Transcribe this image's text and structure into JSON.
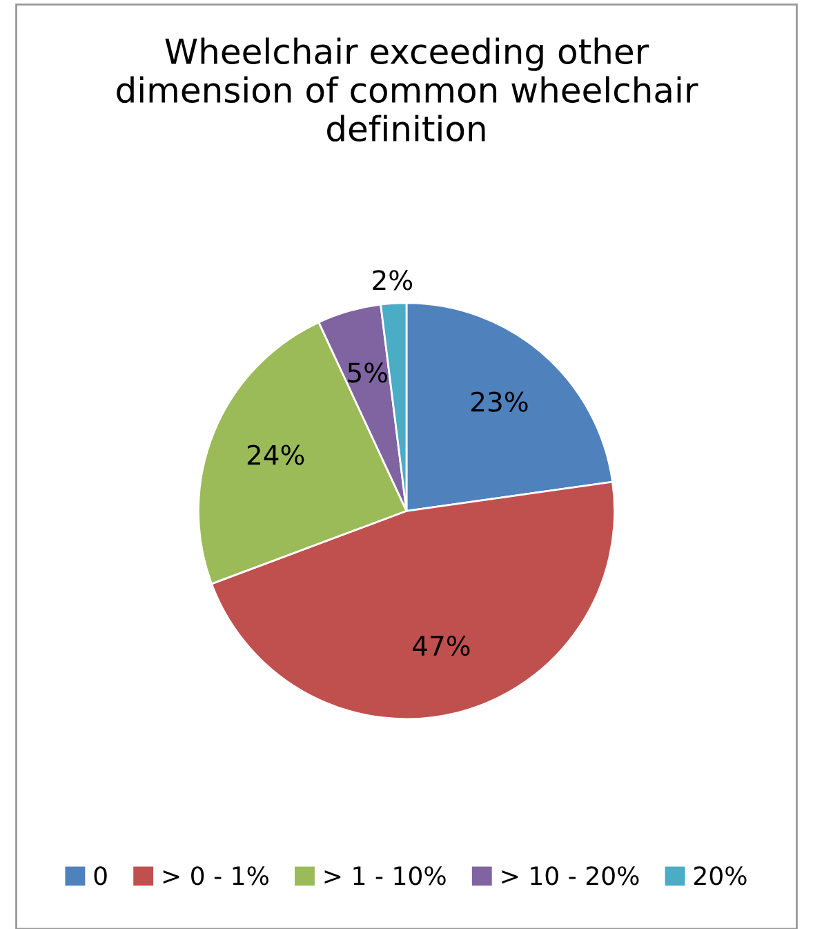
{
  "chart_data": {
    "type": "pie",
    "title": "Wheelchair exceeding other dimension of common wheelchair definition",
    "categories": [
      "0",
      "> 0 - 1%",
      "> 1 - 10%",
      "> 10 - 20%",
      "20%"
    ],
    "values": [
      23,
      47,
      24,
      5,
      2
    ],
    "colors": [
      "#4f81bd",
      "#c0504d",
      "#9bbb59",
      "#8064a2",
      "#4bacc6"
    ],
    "value_labels": [
      "23%",
      "47%",
      "24%",
      "5%",
      "2%"
    ],
    "legend": "bottom"
  }
}
